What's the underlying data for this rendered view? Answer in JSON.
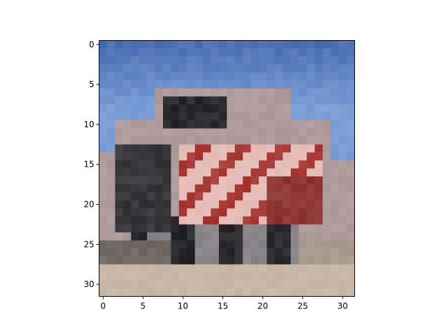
{
  "image": {
    "subject": "truck",
    "grid_width": 32,
    "grid_height": 32,
    "palette": {
      "sky": "#7c9ed6",
      "sky_top": "#4d6fb4",
      "cab_dark": "#2a2a2e",
      "red": "#a83a36",
      "pink": "#e6bdb8",
      "gray": "#8a8588",
      "ground": "#c7b7a6"
    }
  },
  "axes": {
    "x_ticks": [
      "0",
      "5",
      "10",
      "15",
      "20",
      "25",
      "30"
    ],
    "y_ticks": [
      "0",
      "5",
      "10",
      "15",
      "20",
      "25",
      "30"
    ]
  }
}
